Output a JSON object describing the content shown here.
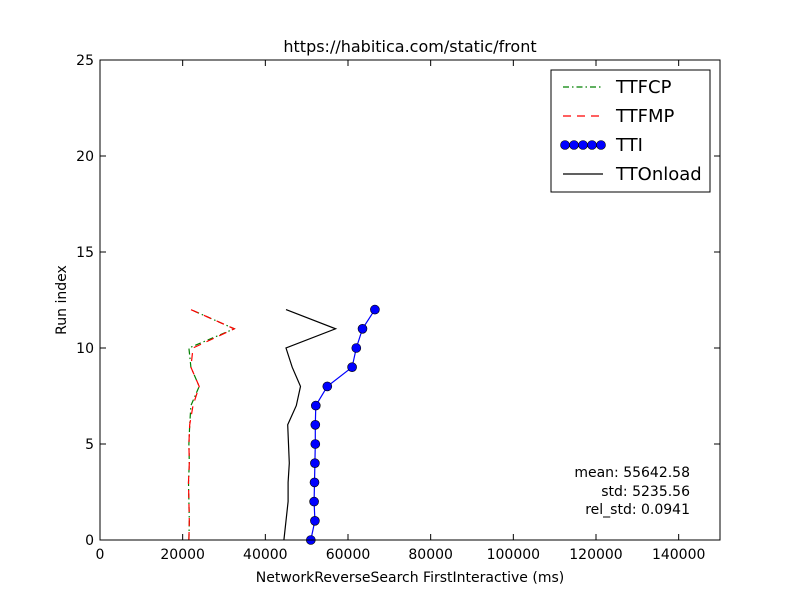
{
  "chart_data": {
    "type": "line",
    "title": "https://habitica.com/static/front",
    "xlabel": "NetworkReverseSearch FirstInteractive (ms)",
    "ylabel": "Run index",
    "xlim": [
      0,
      150000
    ],
    "ylim": [
      0,
      25
    ],
    "xticks": [
      0,
      20000,
      40000,
      60000,
      80000,
      100000,
      120000,
      140000
    ],
    "xtick_labels": [
      "0",
      "20000",
      "40000",
      "60000",
      "80000",
      "100000",
      "120000",
      "140000"
    ],
    "yticks": [
      0,
      5,
      10,
      15,
      20,
      25
    ],
    "ytick_labels": [
      "0",
      "5",
      "10",
      "15",
      "20",
      "25"
    ],
    "grid": false,
    "legend_position": "top-right",
    "series": [
      {
        "name": "TTFCP",
        "color": "#008000",
        "line_style": "dash-dot",
        "marker": "none",
        "x": [
          21500,
          21600,
          21500,
          21400,
          21600,
          21500,
          21700,
          22000,
          24000,
          22000,
          21500,
          32500,
          22000
        ],
        "y": [
          0,
          1,
          2,
          3,
          4,
          5,
          6,
          7,
          8,
          9,
          10,
          11,
          12
        ]
      },
      {
        "name": "TTFMP",
        "color": "#ff0000",
        "line_style": "dashed",
        "marker": "none",
        "x": [
          21500,
          21600,
          21500,
          21400,
          21600,
          21500,
          21700,
          22500,
          24000,
          22000,
          22500,
          32500,
          22000
        ],
        "y": [
          0,
          1,
          2,
          3,
          4,
          5,
          6,
          7,
          8,
          9,
          10,
          11,
          12
        ]
      },
      {
        "name": "TTI",
        "color": "#0000ff",
        "line_style": "solid",
        "marker": "circle",
        "x": [
          51000,
          52000,
          51800,
          51900,
          52000,
          52100,
          52100,
          52200,
          55000,
          61000,
          62000,
          63500,
          66500
        ],
        "y": [
          0,
          1,
          2,
          3,
          4,
          5,
          6,
          7,
          8,
          9,
          10,
          11,
          12
        ]
      },
      {
        "name": "TTOnload",
        "color": "#000000",
        "line_style": "solid",
        "marker": "none",
        "x": [
          44500,
          45000,
          45500,
          45500,
          45800,
          45600,
          45400,
          47500,
          48500,
          46500,
          45000,
          57000,
          45000
        ],
        "y": [
          0,
          1,
          2,
          3,
          4,
          5,
          6,
          7,
          8,
          9,
          10,
          11,
          12
        ]
      }
    ],
    "annotations": {
      "mean": "mean: 55642.58",
      "std": "std: 5235.56",
      "rel_std": "rel_std: 0.0941"
    }
  }
}
